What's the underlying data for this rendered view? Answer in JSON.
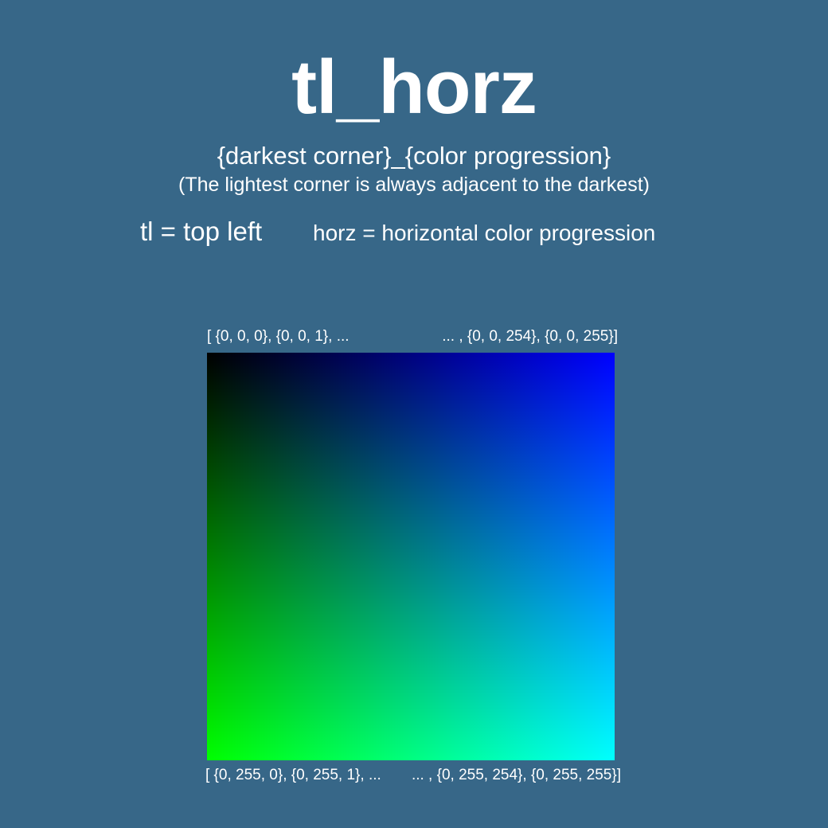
{
  "title": "tl_horz",
  "subtitle": "{darkest corner}_{color progression}",
  "subnote": "(The lightest corner is always adjacent to the darkest)",
  "legend": {
    "corner": "tl = top left",
    "progression": "horz = horizontal color progression"
  },
  "gradient": {
    "top_left": "#000000",
    "top_right": "#0000ff",
    "bottom_left": "#00ff00",
    "bottom_right": "#00ffff",
    "background": "#376788",
    "top_labels": {
      "left": "[ {0, 0, 0}, {0, 0, 1}, ...",
      "right": "... , {0, 0, 254}, {0, 0, 255}]"
    },
    "bottom_labels": {
      "left": "[ {0, 255, 0}, {0, 255, 1}, ...",
      "right": "... , {0, 255, 254}, {0, 255, 255}]"
    }
  }
}
